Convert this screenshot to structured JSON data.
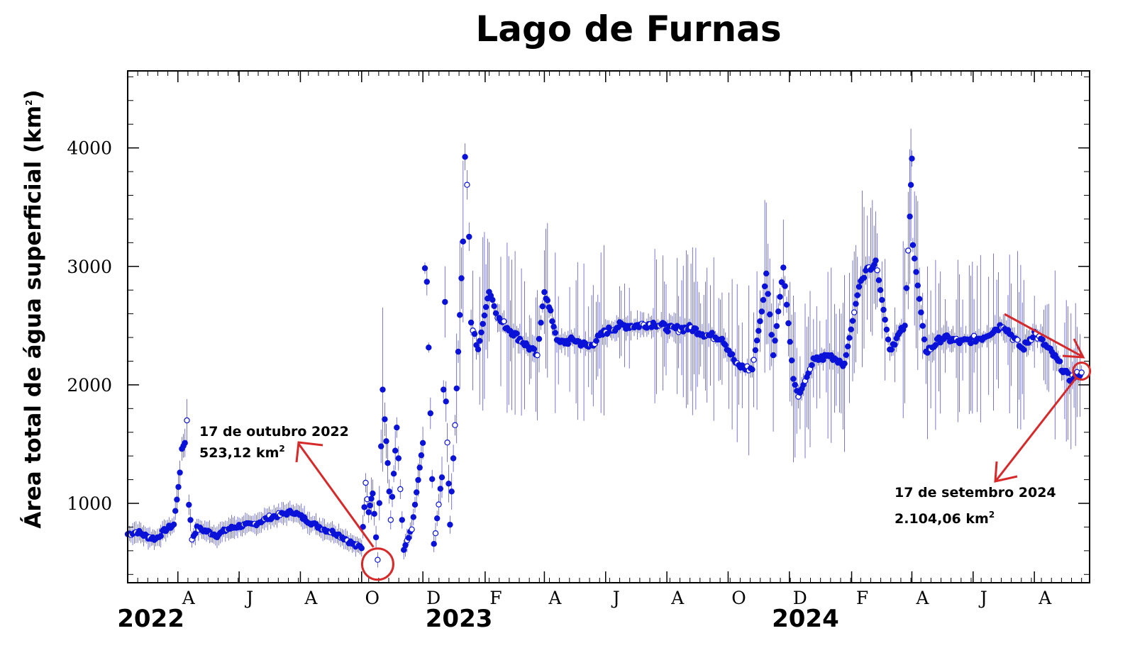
{
  "chart_data": {
    "type": "scatter",
    "title": "Lago de Furnas",
    "ylabel": "Área total de água superficial (km",
    "ylabel_sup": "2",
    "ylabel_close": ")",
    "ylim": [
      330,
      4650
    ],
    "xlim": [
      "2022-02-10",
      "2024-09-25"
    ],
    "yticks": [
      1000,
      2000,
      3000,
      4000
    ],
    "yticks_labels": [
      "1000",
      "2000",
      "3000",
      "4000"
    ],
    "month_ticks": [
      {
        "date": "2022-04-01",
        "label": "A"
      },
      {
        "date": "2022-06-01",
        "label": "J"
      },
      {
        "date": "2022-08-01",
        "label": "A"
      },
      {
        "date": "2022-10-01",
        "label": "O"
      },
      {
        "date": "2022-12-01",
        "label": "D"
      },
      {
        "date": "2023-02-01",
        "label": "F"
      },
      {
        "date": "2023-04-01",
        "label": "A"
      },
      {
        "date": "2023-06-01",
        "label": "J"
      },
      {
        "date": "2023-08-01",
        "label": "A"
      },
      {
        "date": "2023-10-01",
        "label": "O"
      },
      {
        "date": "2023-12-01",
        "label": "D"
      },
      {
        "date": "2024-02-01",
        "label": "F"
      },
      {
        "date": "2024-04-01",
        "label": "A"
      },
      {
        "date": "2024-06-01",
        "label": "J"
      },
      {
        "date": "2024-08-01",
        "label": "A"
      }
    ],
    "year_labels": [
      {
        "date": "2022-03-05",
        "label": "2022"
      },
      {
        "date": "2023-01-06",
        "label": "2023"
      },
      {
        "date": "2023-12-17",
        "label": "2024"
      }
    ],
    "colors": {
      "points": "#0a12d8",
      "errorbars": "#3a3ab8",
      "annotation": "#d62a2a"
    },
    "series": [
      {
        "date": "2022-02-10",
        "y": 740
      },
      {
        "date": "2022-02-20",
        "y": 760
      },
      {
        "date": "2022-03-01",
        "y": 720
      },
      {
        "date": "2022-03-10",
        "y": 700
      },
      {
        "date": "2022-03-20",
        "y": 780
      },
      {
        "date": "2022-03-28",
        "y": 820
      },
      {
        "date": "2022-04-03",
        "y": 1260,
        "err": 100
      },
      {
        "date": "2022-04-05",
        "y": 1460,
        "err": 100
      },
      {
        "date": "2022-04-08",
        "y": 1510,
        "err": 120
      },
      {
        "date": "2022-04-10",
        "y": 1700,
        "err": 180
      },
      {
        "date": "2022-04-12",
        "y": 1000
      },
      {
        "date": "2022-04-15",
        "y": 700
      },
      {
        "date": "2022-04-20",
        "y": 790
      },
      {
        "date": "2022-05-01",
        "y": 760
      },
      {
        "date": "2022-05-10",
        "y": 730
      },
      {
        "date": "2022-05-20",
        "y": 780
      },
      {
        "date": "2022-06-01",
        "y": 810
      },
      {
        "date": "2022-06-15",
        "y": 820
      },
      {
        "date": "2022-07-01",
        "y": 880
      },
      {
        "date": "2022-07-15",
        "y": 910
      },
      {
        "date": "2022-07-25",
        "y": 930
      },
      {
        "date": "2022-08-05",
        "y": 870
      },
      {
        "date": "2022-08-15",
        "y": 820
      },
      {
        "date": "2022-08-25",
        "y": 780
      },
      {
        "date": "2022-09-05",
        "y": 750
      },
      {
        "date": "2022-09-15",
        "y": 700
      },
      {
        "date": "2022-09-25",
        "y": 640
      },
      {
        "date": "2022-10-01",
        "y": 630
      },
      {
        "date": "2022-10-05",
        "y": 1160
      },
      {
        "date": "2022-10-08",
        "y": 940
      },
      {
        "date": "2022-10-12",
        "y": 1100
      },
      {
        "date": "2022-10-17",
        "y": 523.12
      },
      {
        "date": "2022-10-22",
        "y": 1960
      },
      {
        "date": "2022-10-24",
        "y": 1710
      },
      {
        "date": "2022-10-27",
        "y": 1340
      },
      {
        "date": "2022-10-30",
        "y": 860
      },
      {
        "date": "2022-11-05",
        "y": 1640
      },
      {
        "date": "2022-11-12",
        "y": 600
      },
      {
        "date": "2022-11-20",
        "y": 780
      },
      {
        "date": "2022-12-01",
        "y": 1510
      },
      {
        "date": "2022-12-03",
        "y": 2970
      },
      {
        "date": "2022-12-05",
        "y": 2870
      },
      {
        "date": "2022-12-12",
        "y": 650
      },
      {
        "date": "2022-12-20",
        "y": 1220
      },
      {
        "date": "2022-12-23",
        "y": 2700
      },
      {
        "date": "2022-12-24",
        "y": 1860
      },
      {
        "date": "2022-12-28",
        "y": 820
      },
      {
        "date": "2023-01-02",
        "y": 1660
      },
      {
        "date": "2023-01-10",
        "y": 3210
      },
      {
        "date": "2023-01-12",
        "y": 3910
      },
      {
        "date": "2023-01-14",
        "y": 3700
      },
      {
        "date": "2023-01-16",
        "y": 3250
      },
      {
        "date": "2023-01-18",
        "y": 2520
      },
      {
        "date": "2023-01-25",
        "y": 2300
      },
      {
        "date": "2023-02-05",
        "y": 2800
      },
      {
        "date": "2023-02-15",
        "y": 2550
      },
      {
        "date": "2023-03-25",
        "y": 2250
      },
      {
        "date": "2023-04-01",
        "y": 2800
      },
      {
        "date": "2023-04-15",
        "y": 2350
      },
      {
        "date": "2023-05-01",
        "y": 2380
      },
      {
        "date": "2023-05-15",
        "y": 2320
      },
      {
        "date": "2023-06-01",
        "y": 2450
      },
      {
        "date": "2023-06-15",
        "y": 2500
      },
      {
        "date": "2023-07-01",
        "y": 2500
      },
      {
        "date": "2023-07-20",
        "y": 2520
      },
      {
        "date": "2023-08-05",
        "y": 2470
      },
      {
        "date": "2023-08-25",
        "y": 2480
      },
      {
        "date": "2023-09-10",
        "y": 2420
      },
      {
        "date": "2023-09-25",
        "y": 2400
      },
      {
        "date": "2023-10-10",
        "y": 2160
      },
      {
        "date": "2023-10-25",
        "y": 2130
      },
      {
        "date": "2023-11-05",
        "y": 2700
      },
      {
        "date": "2023-11-08",
        "y": 2940
      },
      {
        "date": "2023-11-15",
        "y": 2250
      },
      {
        "date": "2023-11-25",
        "y": 2990
      },
      {
        "date": "2023-12-05",
        "y": 2050
      },
      {
        "date": "2023-12-10",
        "y": 1900
      },
      {
        "date": "2023-12-25",
        "y": 2200
      },
      {
        "date": "2024-01-10",
        "y": 2250
      },
      {
        "date": "2024-01-25",
        "y": 2180
      },
      {
        "date": "2024-02-10",
        "y": 2900
      },
      {
        "date": "2024-02-25",
        "y": 3050
      },
      {
        "date": "2024-03-10",
        "y": 2300
      },
      {
        "date": "2024-03-25",
        "y": 2500
      },
      {
        "date": "2024-03-30",
        "y": 3450
      },
      {
        "date": "2024-03-31",
        "y": 3710
      },
      {
        "date": "2024-04-01",
        "y": 3910
      },
      {
        "date": "2024-04-02",
        "y": 3180
      },
      {
        "date": "2024-04-15",
        "y": 2270
      },
      {
        "date": "2024-05-01",
        "y": 2400
      },
      {
        "date": "2024-05-20",
        "y": 2360
      },
      {
        "date": "2024-06-10",
        "y": 2400
      },
      {
        "date": "2024-07-01",
        "y": 2510
      },
      {
        "date": "2024-07-20",
        "y": 2300
      },
      {
        "date": "2024-08-01",
        "y": 2440
      },
      {
        "date": "2024-08-20",
        "y": 2250
      },
      {
        "date": "2024-09-05",
        "y": 2050
      },
      {
        "date": "2024-09-17",
        "y": 2104.06
      }
    ],
    "annotations": [
      {
        "name": "min-2022",
        "date": "2022-10-17",
        "value": 523.12,
        "line1": "17 de outubro 2022",
        "line2": "523,12 km",
        "sup": "2"
      },
      {
        "name": "latest-2024",
        "date": "2024-09-17",
        "value": 2104.06,
        "line1": "17 de setembro 2024",
        "line2": "2.104,06 km",
        "sup": "2"
      }
    ]
  }
}
